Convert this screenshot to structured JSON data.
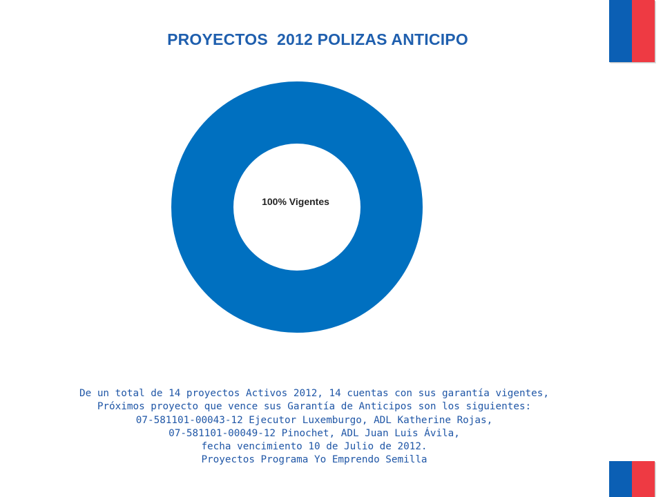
{
  "title": "PROYECTOS  2012 POLIZAS ANTICIPO",
  "chart_data": {
    "type": "pie",
    "title": "PROYECTOS  2012 POLIZAS ANTICIPO",
    "categories": [
      "Vigentes"
    ],
    "values": [
      100
    ],
    "unit": "%",
    "colors": [
      "#0070c0"
    ],
    "data_labels": [
      "100% Vigentes"
    ],
    "legend": "none"
  },
  "caption": {
    "lines": [
      "De un total de 14 proyectos Activos 2012, 14 cuentas con sus garantía vigentes,",
      "Próximos proyecto que vence sus Garantía de Anticipos son los siguientes:",
      "07-581101-00043-12 Ejecutor Luxemburgo, ADL Katherine Rojas,",
      "07-581101-00049-12 Pinochet, ADL Juan Luis Ávila,",
      "fecha vencimiento 10 de Julio de 2012.",
      "Proyectos Programa Yo Emprendo Semilla"
    ]
  },
  "colors": {
    "title": "#1f5fae",
    "caption": "#1f56a6",
    "flag_blue": "#0b5fb4",
    "flag_red": "#ee3a43"
  }
}
